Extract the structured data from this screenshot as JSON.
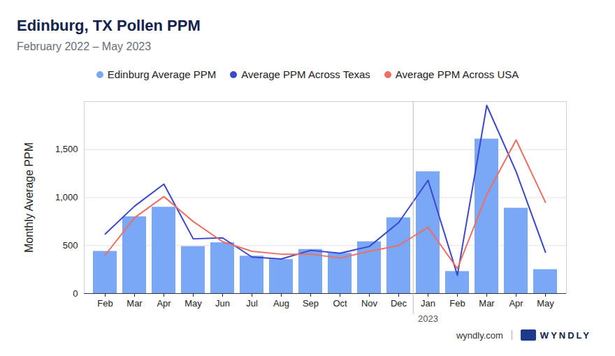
{
  "chart_data": {
    "type": "bar",
    "title": "Edinburg, TX Pollen PPM",
    "subtitle": "February 2022 – May 2023",
    "y_label": "Monthly Average PPM",
    "categories": [
      "Feb",
      "Mar",
      "Apr",
      "May",
      "Jun",
      "Jul",
      "Aug",
      "Sep",
      "Oct",
      "Nov",
      "Dec",
      "Jan",
      "Feb",
      "Mar",
      "Apr",
      "May"
    ],
    "series": [
      {
        "name": "Edinburg Average PPM",
        "type": "bar",
        "color": "#7ba7f7",
        "values": [
          440,
          800,
          900,
          490,
          530,
          390,
          355,
          460,
          420,
          540,
          790,
          1270,
          230,
          1610,
          890,
          250
        ]
      },
      {
        "name": "Average PPM Across Texas",
        "type": "line",
        "color": "#3b48cc",
        "values": [
          620,
          910,
          1140,
          570,
          580,
          380,
          360,
          450,
          420,
          490,
          740,
          1180,
          190,
          1960,
          1270,
          430
        ]
      },
      {
        "name": "Average PPM Across USA",
        "type": "line",
        "color": "#ec6f63",
        "values": [
          400,
          790,
          1010,
          750,
          540,
          440,
          410,
          410,
          370,
          440,
          500,
          690,
          260,
          1030,
          1600,
          950
        ]
      }
    ],
    "ylim": [
      0,
      2000
    ],
    "yticks": [
      0,
      500,
      {
        "value": 1000,
        "label": "1,000"
      },
      {
        "value": 1500,
        "label": "1,500"
      }
    ],
    "grid": true,
    "legend": "top",
    "annotations": [
      {
        "text": "2023",
        "category_index": 11
      }
    ],
    "footer": [
      "wyndly.com",
      "WYNDLY"
    ]
  }
}
